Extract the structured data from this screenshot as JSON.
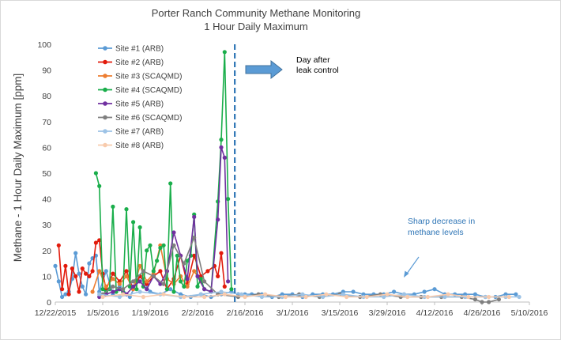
{
  "chart_data": {
    "type": "line",
    "title": [
      "Porter Ranch Community Methane Monitoring",
      "1 Hour Daily Maximum"
    ],
    "xlabel": "",
    "ylabel": "Methane - 1 Hour Daily Maximum [ppm]",
    "x_start": "2015-12-22",
    "xlim": [
      "2015-12-22",
      "2016-05-10"
    ],
    "ylim": [
      0,
      100
    ],
    "x_ticks": [
      "12/22/2015",
      "1/5/2016",
      "1/19/2016",
      "2/2/2016",
      "2/16/2016",
      "3/1/2016",
      "3/15/2016",
      "3/29/2016",
      "4/12/2016",
      "4/26/2016",
      "5/10/2016"
    ],
    "y_ticks": [
      0,
      10,
      20,
      30,
      40,
      50,
      60,
      70,
      80,
      90,
      100
    ],
    "grid": false,
    "legend_position": "top-left",
    "series": [
      {
        "name": "Site #1 (ARB)",
        "color": "#5b9bd5",
        "x": [
          "2015-12-22",
          "2015-12-23",
          "2015-12-24",
          "2015-12-25",
          "2015-12-26",
          "2015-12-27",
          "2015-12-28",
          "2015-12-29",
          "2015-12-30",
          "2015-12-31",
          "2016-01-01",
          "2016-01-02",
          "2016-01-03",
          "2016-01-04",
          "2016-01-06",
          "2016-01-08",
          "2016-01-10",
          "2016-01-13",
          "2016-01-16",
          "2016-01-19",
          "2016-01-22",
          "2016-01-25",
          "2016-01-28",
          "2016-01-31",
          "2016-02-03",
          "2016-02-06",
          "2016-02-09",
          "2016-02-12",
          "2016-02-14",
          "2016-02-16",
          "2016-02-18",
          "2016-02-21",
          "2016-02-24",
          "2016-02-27",
          "2016-03-01",
          "2016-03-04",
          "2016-03-07",
          "2016-03-10",
          "2016-03-13",
          "2016-03-16",
          "2016-03-19",
          "2016-03-22",
          "2016-03-25",
          "2016-03-28",
          "2016-03-31",
          "2016-04-03",
          "2016-04-06",
          "2016-04-09",
          "2016-04-12",
          "2016-04-15",
          "2016-04-18",
          "2016-04-21",
          "2016-04-24",
          "2016-04-27",
          "2016-04-30",
          "2016-05-03",
          "2016-05-06"
        ],
        "values": [
          14,
          8,
          2,
          3,
          4,
          9,
          19,
          11,
          6,
          3,
          15,
          17,
          18,
          4,
          12,
          3,
          6,
          2,
          10,
          4,
          3,
          5,
          3,
          2,
          3,
          2,
          3,
          4,
          3,
          3,
          3,
          3,
          2,
          3,
          3,
          2,
          3,
          3,
          3,
          4,
          4,
          3,
          3,
          3,
          4,
          3,
          3,
          4,
          5,
          3,
          3,
          3,
          3,
          2,
          2,
          3,
          3
        ]
      },
      {
        "name": "Site #2 (ARB)",
        "color": "#e21b0c",
        "x": [
          "2015-12-23",
          "2015-12-24",
          "2015-12-25",
          "2015-12-26",
          "2015-12-27",
          "2015-12-28",
          "2015-12-29",
          "2015-12-30",
          "2015-12-31",
          "2016-01-01",
          "2016-01-02",
          "2016-01-03",
          "2016-01-04",
          "2016-01-05",
          "2016-01-06",
          "2016-01-08",
          "2016-01-10",
          "2016-01-12",
          "2016-01-14",
          "2016-01-16",
          "2016-01-18",
          "2016-01-20",
          "2016-01-22",
          "2016-01-24",
          "2016-01-26",
          "2016-01-28",
          "2016-01-30",
          "2016-02-01",
          "2016-02-03",
          "2016-02-05",
          "2016-02-07",
          "2016-02-08",
          "2016-02-09",
          "2016-02-10"
        ],
        "values": [
          22,
          5,
          14,
          3,
          13,
          10,
          4,
          13,
          11,
          10,
          12,
          23,
          24,
          11,
          5,
          11,
          8,
          12,
          5,
          10,
          7,
          10,
          12,
          5,
          9,
          18,
          7,
          18,
          10,
          12,
          14,
          10,
          19,
          6
        ]
      },
      {
        "name": "Site #3 (SCAQMD)",
        "color": "#ed7d31",
        "x": [
          "2016-01-02",
          "2016-01-04",
          "2016-01-06",
          "2016-01-08",
          "2016-01-10",
          "2016-01-12",
          "2016-01-14",
          "2016-01-16",
          "2016-01-18",
          "2016-01-20",
          "2016-01-22",
          "2016-01-24",
          "2016-01-26",
          "2016-01-28",
          "2016-01-30",
          "2016-02-01",
          "2016-02-03"
        ],
        "values": [
          4,
          12,
          6,
          9,
          7,
          10,
          5,
          14,
          8,
          11,
          22,
          9,
          7,
          10,
          6,
          12,
          8
        ]
      },
      {
        "name": "Site #4 (SCAQMD)",
        "color": "#1aae4b",
        "x": [
          "2016-01-03",
          "2016-01-04",
          "2016-01-05",
          "2016-01-06",
          "2016-01-07",
          "2016-01-08",
          "2016-01-09",
          "2016-01-10",
          "2016-01-11",
          "2016-01-12",
          "2016-01-13",
          "2016-01-14",
          "2016-01-15",
          "2016-01-16",
          "2016-01-17",
          "2016-01-18",
          "2016-01-19",
          "2016-01-20",
          "2016-01-21",
          "2016-01-22",
          "2016-01-23",
          "2016-01-24",
          "2016-01-25",
          "2016-01-26",
          "2016-01-27",
          "2016-01-28",
          "2016-01-29",
          "2016-01-30",
          "2016-01-31",
          "2016-02-01",
          "2016-02-02",
          "2016-02-03",
          "2016-02-04",
          "2016-02-06",
          "2016-02-08",
          "2016-02-09",
          "2016-02-10",
          "2016-02-11",
          "2016-02-12"
        ],
        "values": [
          50,
          45,
          5,
          4,
          5,
          37,
          4,
          5,
          4,
          36,
          6,
          31,
          5,
          29,
          6,
          20,
          22,
          12,
          16,
          21,
          22,
          5,
          46,
          4,
          18,
          8,
          6,
          16,
          18,
          34,
          6,
          9,
          5,
          4,
          39,
          63,
          97,
          40,
          5
        ]
      },
      {
        "name": "Site #5 (ARB)",
        "color": "#7030a0",
        "x": [
          "2016-01-04",
          "2016-01-06",
          "2016-01-08",
          "2016-01-10",
          "2016-01-12",
          "2016-01-14",
          "2016-01-16",
          "2016-01-18",
          "2016-01-20",
          "2016-01-22",
          "2016-01-24",
          "2016-01-26",
          "2016-01-28",
          "2016-01-30",
          "2016-02-01",
          "2016-02-02",
          "2016-02-04",
          "2016-02-06",
          "2016-02-08",
          "2016-02-09",
          "2016-02-10",
          "2016-02-11"
        ],
        "values": [
          2,
          3,
          4,
          5,
          3,
          6,
          8,
          5,
          10,
          7,
          12,
          27,
          18,
          9,
          33,
          10,
          5,
          4,
          32,
          60,
          56,
          8
        ]
      },
      {
        "name": "Site #6 (SCAQMD)",
        "color": "#7f7f7f",
        "x": [
          "2016-01-05",
          "2016-01-08",
          "2016-01-11",
          "2016-01-14",
          "2016-01-17",
          "2016-01-20",
          "2016-01-23",
          "2016-01-26",
          "2016-01-29",
          "2016-02-01",
          "2016-02-04",
          "2016-02-08",
          "2016-02-14",
          "2016-02-20",
          "2016-02-26",
          "2016-03-03",
          "2016-03-09",
          "2016-03-15",
          "2016-03-21",
          "2016-03-27",
          "2016-04-02",
          "2016-04-08",
          "2016-04-14",
          "2016-04-20",
          "2016-04-24",
          "2016-04-26",
          "2016-04-28",
          "2016-05-01"
        ],
        "values": [
          3,
          6,
          5,
          8,
          12,
          10,
          7,
          22,
          15,
          25,
          8,
          3,
          2,
          3,
          2,
          3,
          2,
          3,
          2,
          3,
          2,
          2,
          2,
          2,
          1,
          0,
          0,
          1
        ]
      },
      {
        "name": "Site #7 (ARB)",
        "color": "#9dc3e6",
        "x": [
          "2016-01-04",
          "2016-01-10",
          "2016-01-16",
          "2016-01-22",
          "2016-01-28",
          "2016-02-03",
          "2016-02-09",
          "2016-02-15",
          "2016-02-21",
          "2016-02-27",
          "2016-03-04",
          "2016-03-10",
          "2016-03-16",
          "2016-03-22",
          "2016-03-28",
          "2016-04-03",
          "2016-04-09",
          "2016-04-15",
          "2016-04-21",
          "2016-04-27",
          "2016-05-03",
          "2016-05-07"
        ],
        "values": [
          3,
          2,
          4,
          3,
          2,
          3,
          4,
          3,
          2,
          2,
          3,
          2,
          3,
          2,
          2,
          3,
          2,
          2,
          2,
          2,
          2,
          2
        ]
      },
      {
        "name": "Site #8 (ARB)",
        "color": "#f8cbad",
        "x": [
          "2016-01-05",
          "2016-01-11",
          "2016-01-17",
          "2016-01-23",
          "2016-01-29",
          "2016-02-04",
          "2016-02-10",
          "2016-02-16",
          "2016-02-22",
          "2016-02-28",
          "2016-03-05",
          "2016-03-11",
          "2016-03-17",
          "2016-03-23",
          "2016-03-29",
          "2016-04-04",
          "2016-04-10",
          "2016-04-16",
          "2016-04-22",
          "2016-04-28",
          "2016-05-04"
        ],
        "values": [
          2,
          3,
          2,
          3,
          2,
          2,
          3,
          2,
          3,
          2,
          2,
          3,
          2,
          2,
          3,
          2,
          2,
          3,
          2,
          2,
          2
        ]
      }
    ],
    "marker_line": {
      "date": "2016-02-13",
      "color": "#2e75b6"
    },
    "annotations": [
      {
        "text": [
          "Day after",
          "leak control"
        ],
        "color": "#000000",
        "arrow": "right"
      },
      {
        "text": [
          "Sharp decrease in",
          "methane levels"
        ],
        "color": "#2e75b6",
        "arrow": "down-left"
      }
    ]
  }
}
